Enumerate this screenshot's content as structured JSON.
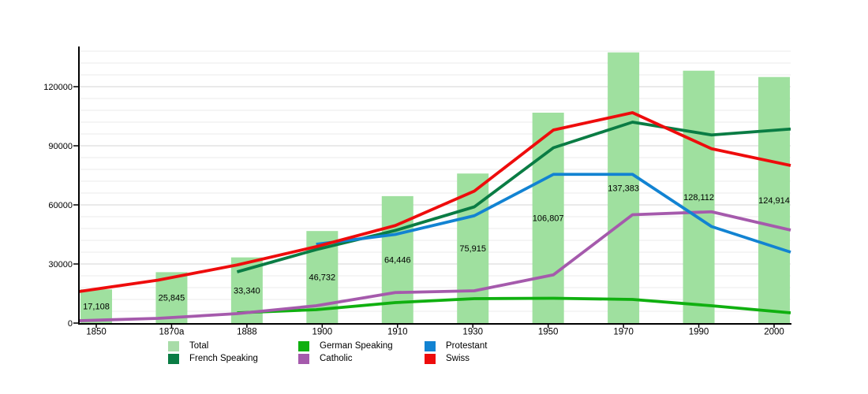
{
  "chart_data": {
    "type": "bar+line",
    "title": "",
    "xlabel": "",
    "ylabel": "",
    "categories": [
      "1850",
      "1870a",
      "1888",
      "1900",
      "1910",
      "1930",
      "1950",
      "1970",
      "1990",
      "2000"
    ],
    "bar_series": {
      "name": "Total",
      "color": "#9fe09f",
      "values": [
        17108,
        25845,
        33340,
        46732,
        64446,
        75915,
        106807,
        137383,
        128112,
        124914
      ],
      "value_labels": [
        "17,108",
        "25,845",
        "33,340",
        "46,732",
        "64,446",
        "75,915",
        "106,807",
        "137,383",
        "128,112",
        "124,914"
      ]
    },
    "line_series": [
      {
        "name": "German Speaking",
        "color": "#10b010",
        "values": [
          null,
          null,
          5200,
          6800,
          10400,
          12400,
          12600,
          12000,
          8800,
          5200
        ]
      },
      {
        "name": "Catholic",
        "color": "#a55aac",
        "values": [
          1200,
          2400,
          4800,
          8800,
          15500,
          16400,
          24500,
          55000,
          56500,
          47200
        ]
      },
      {
        "name": "French Speaking",
        "color": "#0a7c44",
        "values": [
          null,
          null,
          26000,
          37300,
          47000,
          59000,
          89000,
          102000,
          95500,
          98500
        ]
      },
      {
        "name": "Protestant",
        "color": "#1283d2",
        "values": [
          null,
          null,
          null,
          40000,
          45000,
          54500,
          75500,
          75500,
          49000,
          36000
        ]
      },
      {
        "name": "Swiss",
        "color": "#ee0c0c",
        "values": [
          16000,
          21800,
          29500,
          38800,
          49500,
          67000,
          98000,
          106800,
          88500,
          80000
        ]
      }
    ],
    "ylim": [
      0,
      140400
    ],
    "y_major_ticks": [
      0,
      30000,
      60000,
      90000,
      120000
    ],
    "y_tick_labels": [
      "0",
      "30000",
      "60000",
      "90000",
      "120000"
    ],
    "y_minor_step": 6000,
    "grid": "horizontal-only",
    "legend_position": "bottom"
  },
  "legend": {
    "items": [
      {
        "label": "Total",
        "color": "#a8dca8"
      },
      {
        "label": "French Speaking",
        "color": "#0a7c44"
      },
      {
        "label": "German Speaking",
        "color": "#10b010"
      },
      {
        "label": "Catholic",
        "color": "#a55aac"
      },
      {
        "label": "Protestant",
        "color": "#1283d2"
      },
      {
        "label": "Swiss",
        "color": "#ee0c0c"
      }
    ]
  },
  "colors": {
    "background": "#ffffff",
    "axis": "#000000",
    "grid_minor": "#ebebeb",
    "grid_major": "#d4d4d4",
    "text": "#000000"
  }
}
